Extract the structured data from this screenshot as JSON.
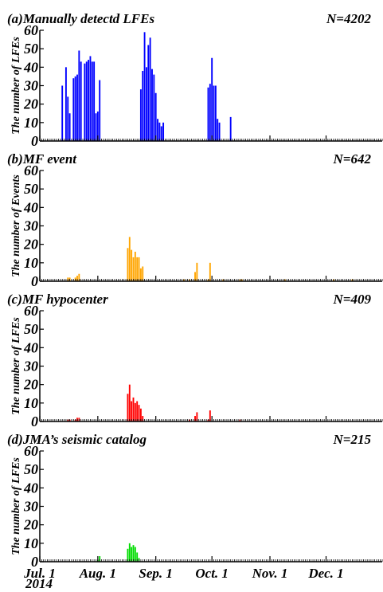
{
  "chart_data": [
    {
      "type": "bar",
      "panel_label": "(a)Manually detectd LFEs",
      "count_label": "N=4202",
      "ylabel": "The number of LFEs",
      "ylim": [
        0,
        60
      ],
      "yticks": [
        0,
        10,
        20,
        30,
        40,
        50,
        60
      ],
      "color": "#0000ff",
      "x_unit": "day of year 2014",
      "x": [
        194,
        196,
        197,
        198,
        200,
        201,
        202,
        203,
        204,
        206,
        207,
        208,
        209,
        210,
        211,
        212,
        213,
        214,
        236,
        237,
        238,
        239,
        240,
        241,
        242,
        243,
        244,
        245,
        246,
        247,
        248,
        272,
        273,
        274,
        275,
        276,
        277,
        278,
        284
      ],
      "values": [
        30,
        40,
        24,
        15,
        34,
        35,
        36,
        49,
        43,
        42,
        43,
        44,
        46,
        43,
        43,
        15,
        16,
        33,
        28,
        38,
        59,
        40,
        52,
        56,
        39,
        36,
        26,
        12,
        10,
        8,
        10,
        29,
        31,
        45,
        30,
        30,
        12,
        10,
        13
      ]
    },
    {
      "type": "bar",
      "panel_label": "(b)MF event",
      "count_label": "N=642",
      "ylabel": "The number of Events",
      "ylim": [
        0,
        60
      ],
      "yticks": [
        0,
        10,
        20,
        30,
        40,
        50,
        60
      ],
      "color": "#ffa500",
      "x_unit": "day of year 2014",
      "x": [
        197,
        198,
        201,
        202,
        203,
        229,
        230,
        231,
        232,
        233,
        234,
        235,
        236,
        237,
        259,
        262,
        265,
        266,
        272,
        273,
        280,
        289,
        290,
        313,
        339,
        349
      ],
      "values": [
        2,
        2,
        2,
        3,
        4,
        18,
        24,
        17,
        13,
        16,
        13,
        13,
        7,
        8,
        1,
        1,
        5,
        10,
        1,
        10,
        1,
        1,
        1,
        1,
        1,
        1
      ]
    },
    {
      "type": "bar",
      "panel_label": "(c)MF hypocenter",
      "count_label": "N=409",
      "ylabel": "The number of LFEs",
      "ylim": [
        0,
        60
      ],
      "yticks": [
        0,
        10,
        20,
        30,
        40,
        50,
        60
      ],
      "color": "#ff0000",
      "x_unit": "day of year 2014",
      "x": [
        197,
        198,
        201,
        202,
        203,
        229,
        230,
        231,
        232,
        233,
        234,
        235,
        236,
        237,
        262,
        265,
        266,
        272,
        273,
        289
      ],
      "values": [
        1,
        1,
        1,
        2,
        2,
        15,
        20,
        11,
        13,
        10,
        11,
        9,
        7,
        3,
        1,
        3,
        5,
        1,
        6,
        1
      ]
    },
    {
      "type": "bar",
      "panel_label": "(d)JMA’s seismic catalog",
      "count_label": "N=215",
      "ylabel": "The number of LFEs",
      "ylim": [
        0,
        60
      ],
      "yticks": [
        0,
        10,
        20,
        30,
        40,
        50,
        60
      ],
      "color": "#00dd00",
      "x_unit": "day of year 2014",
      "x": [
        213,
        214,
        229,
        230,
        231,
        232,
        233,
        234,
        235
      ],
      "values": [
        1,
        3,
        7,
        10,
        8,
        9,
        8,
        5,
        2
      ]
    }
  ],
  "x_axis": {
    "xlim": [
      182,
      365
    ],
    "tick_days": [
      182,
      213,
      244,
      274,
      305,
      335
    ],
    "tick_labels": [
      "Jul. 1",
      "Aug. 1",
      "Sep. 1",
      "Oct. 1",
      "Nov. 1",
      "Dec. 1"
    ],
    "year_label": "2014"
  }
}
